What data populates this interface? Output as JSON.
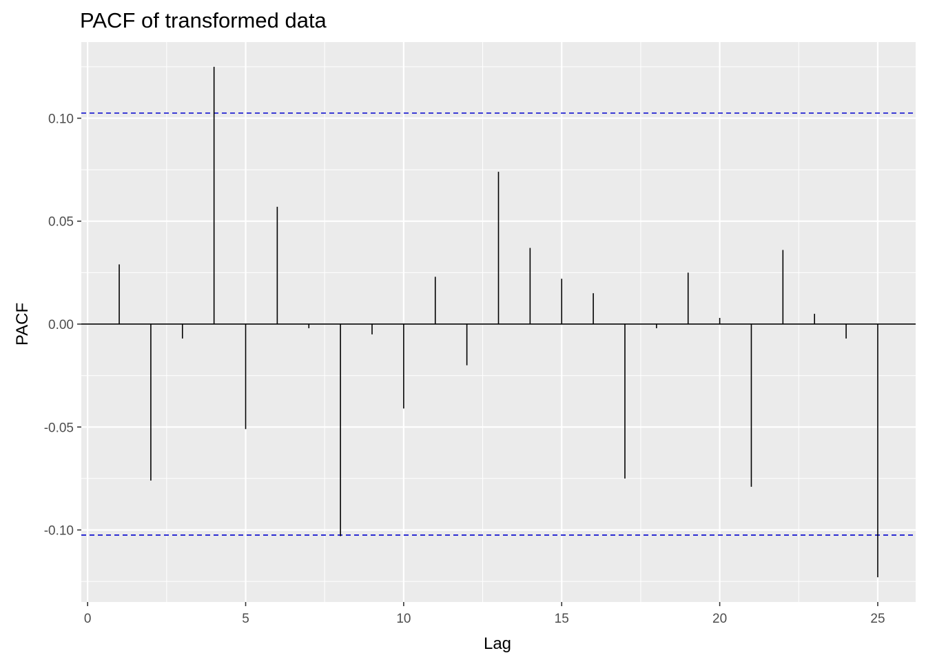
{
  "chart_data": {
    "type": "bar",
    "title": "PACF of transformed data",
    "xlabel": "Lag",
    "ylabel": "PACF",
    "x": [
      1,
      2,
      3,
      4,
      5,
      6,
      7,
      8,
      9,
      10,
      11,
      12,
      13,
      14,
      15,
      16,
      17,
      18,
      19,
      20,
      21,
      22,
      23,
      24,
      25
    ],
    "values": [
      0.029,
      -0.076,
      -0.007,
      0.125,
      -0.051,
      0.057,
      -0.002,
      -0.103,
      -0.005,
      -0.041,
      0.023,
      -0.02,
      0.074,
      0.037,
      0.022,
      0.015,
      -0.075,
      -0.002,
      0.025,
      0.003,
      -0.079,
      0.036,
      0.005,
      -0.007,
      -0.123
    ],
    "confidence_limit": 0.1025,
    "xlim": [
      -0.2,
      26.2
    ],
    "ylim": [
      -0.135,
      0.137
    ],
    "x_ticks": [
      0,
      5,
      10,
      15,
      20,
      25
    ],
    "x_tick_labels": [
      "0",
      "5",
      "10",
      "15",
      "20",
      "25"
    ],
    "y_ticks": [
      -0.1,
      -0.05,
      0,
      0.05,
      0.1
    ],
    "y_tick_labels": [
      "-0.10",
      "-0.05",
      "0.00",
      "0.05",
      "0.10"
    ],
    "grid": true,
    "colors": {
      "panel_background": "#ebebeb",
      "grid": "#ffffff",
      "bars": "#000000",
      "zero_line": "#000000",
      "confidence_lines": "#0000cc"
    }
  }
}
